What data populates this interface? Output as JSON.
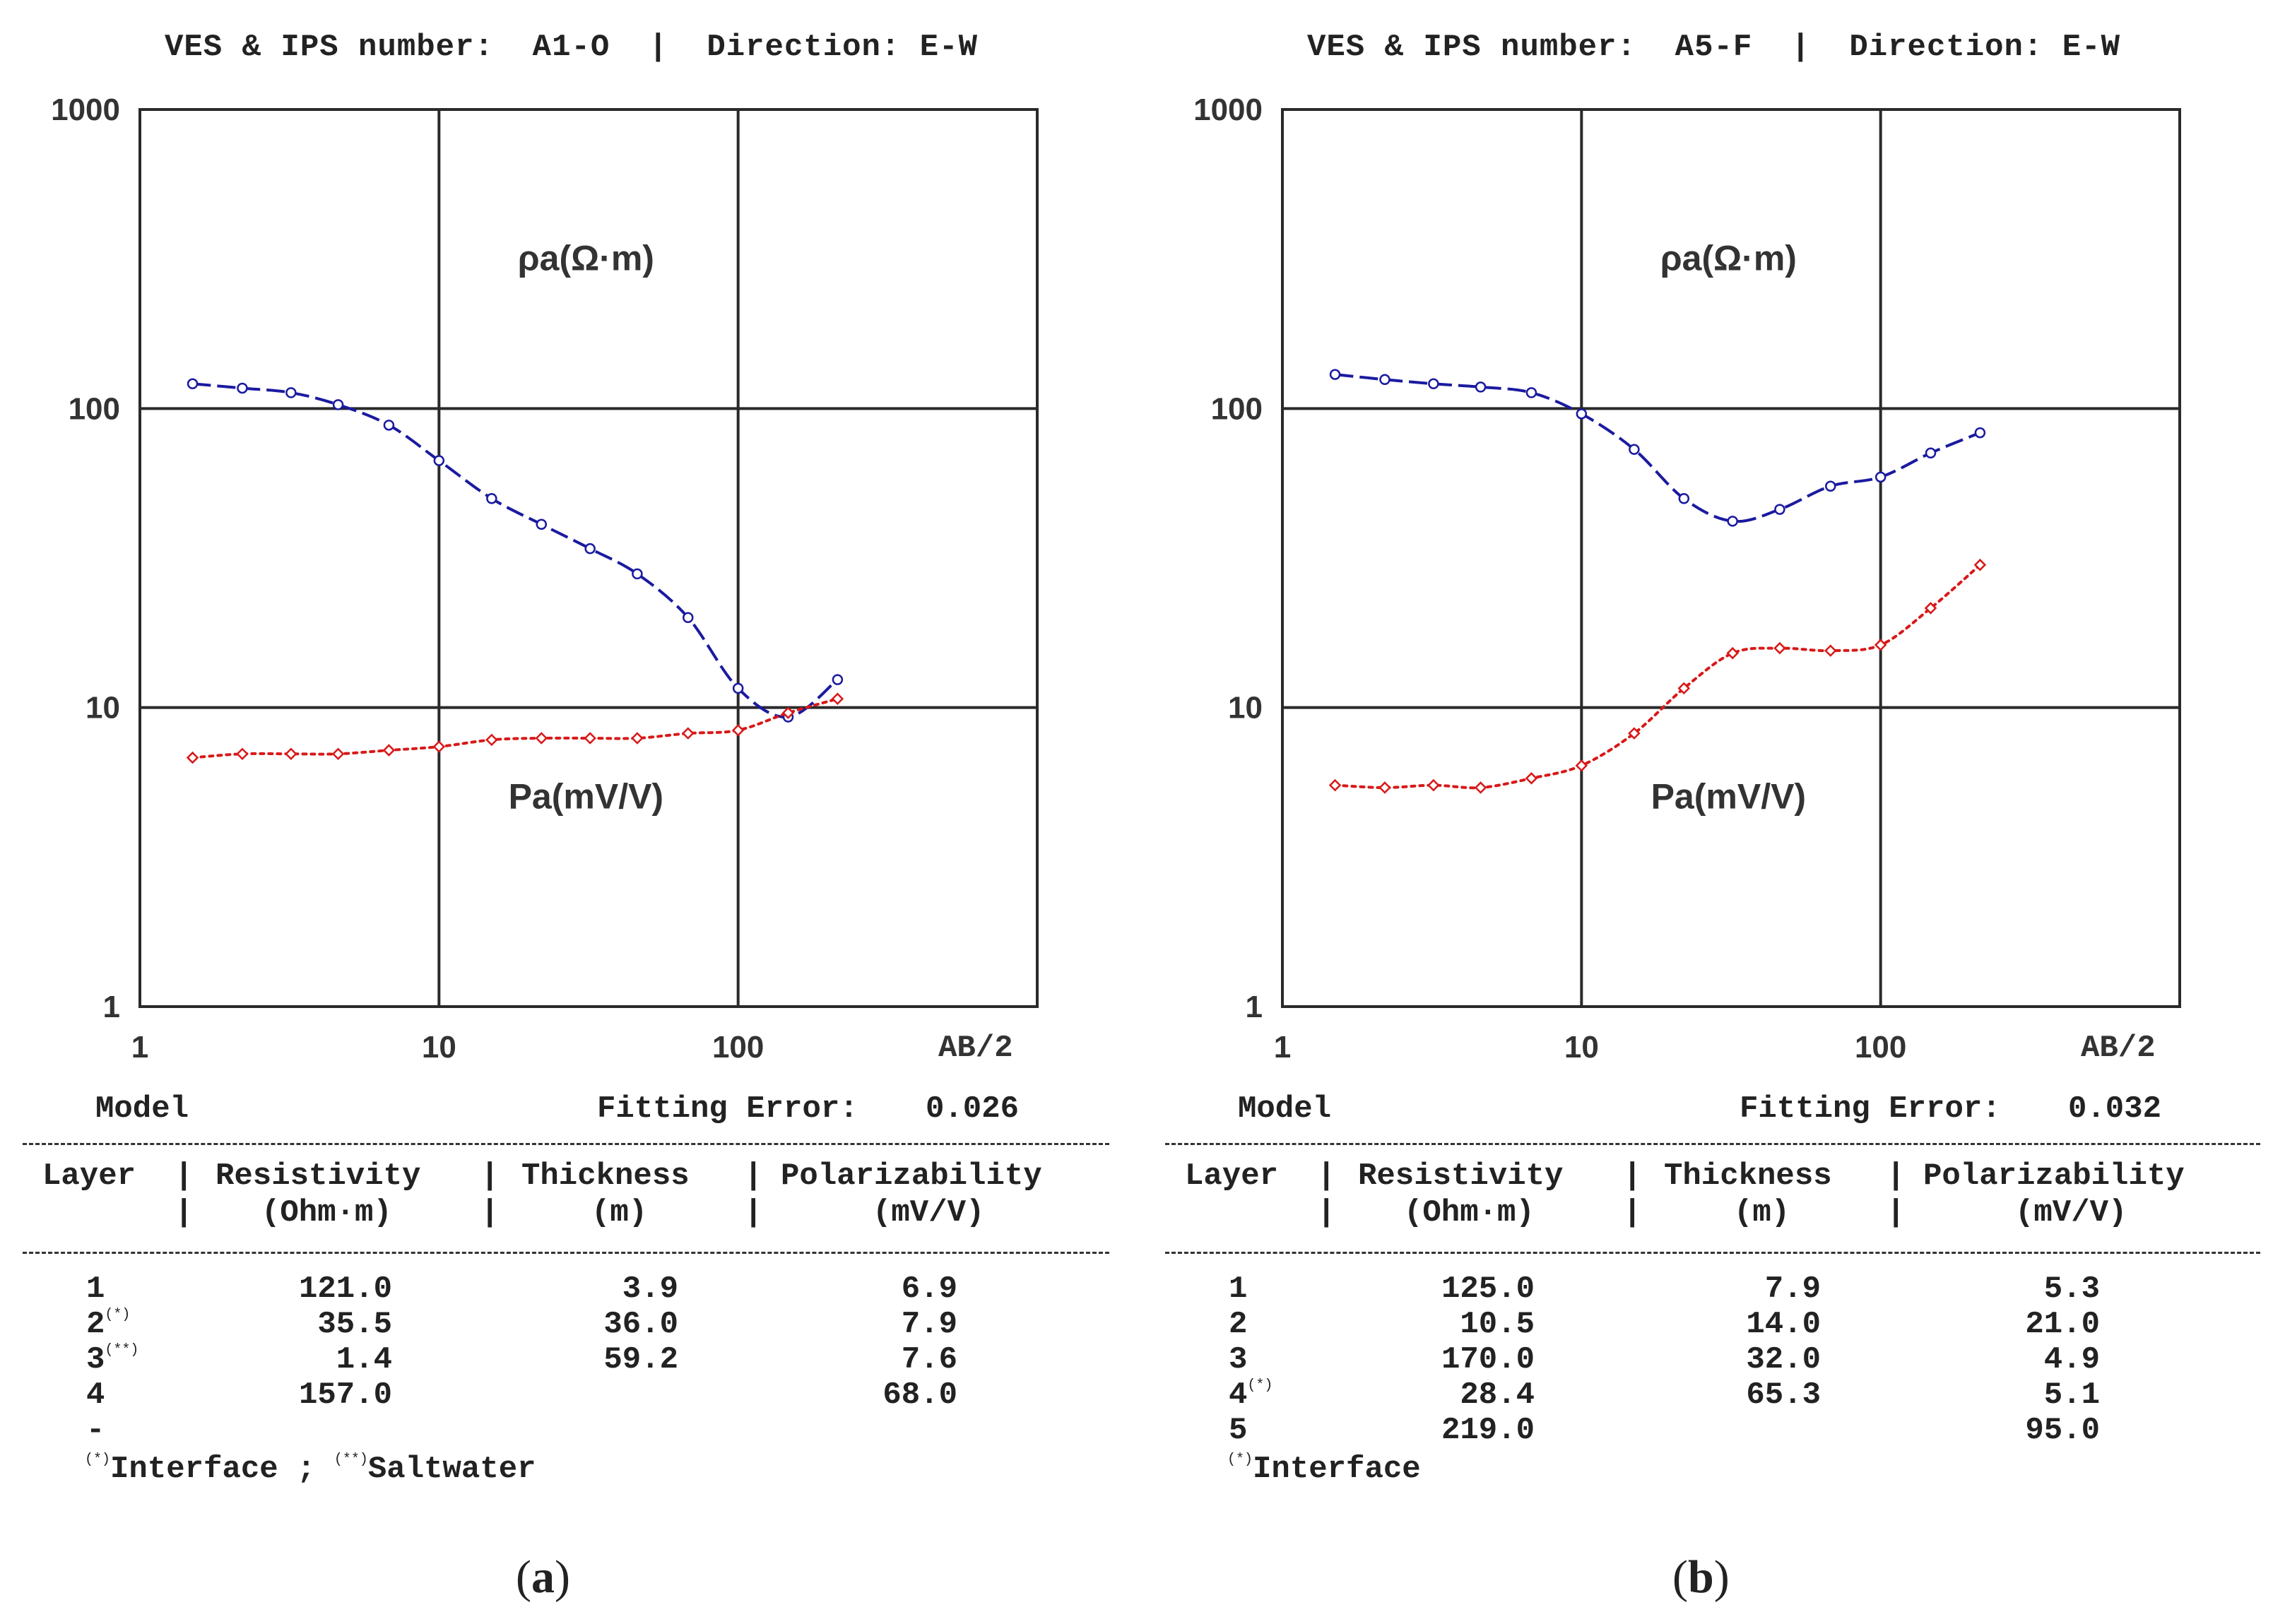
{
  "colors": {
    "resistivity": "#1a1aa0",
    "polarizability": "#d81818",
    "grid": "#2a2a2a"
  },
  "chart_data": [
    {
      "type": "line",
      "header": "VES & IPS number:  A1-O  |  Direction: E-W",
      "xscale": "log",
      "yscale": "log",
      "xlim": [
        1,
        1000
      ],
      "ylim": [
        1,
        1000
      ],
      "x_ticks": [
        "1",
        "10",
        "100"
      ],
      "y_ticks": [
        "1000",
        "100",
        "10",
        "1"
      ],
      "xlabel": "AB/2",
      "curve_labels": {
        "resistivity": "ρa(Ω·m)",
        "polarizability": "Pa(mV/V)"
      },
      "series": [
        {
          "name": "ρa (Ω·m)",
          "style": "dashed",
          "marker": "circle",
          "x": [
            1.5,
            2.2,
            3.2,
            4.6,
            6.8,
            10,
            15,
            22,
            32,
            46,
            68,
            100,
            147,
            215
          ],
          "y": [
            121,
            117,
            113,
            103,
            88,
            67,
            50,
            41,
            34,
            28,
            20,
            11.6,
            9.3,
            12.4
          ]
        },
        {
          "name": "Pa (mV/V)",
          "style": "dotted",
          "marker": "diamond",
          "x": [
            1.5,
            2.2,
            3.2,
            4.6,
            6.8,
            10,
            15,
            22,
            32,
            46,
            68,
            100,
            147,
            215
          ],
          "y": [
            6.8,
            7.0,
            7.0,
            7.0,
            7.2,
            7.4,
            7.8,
            7.9,
            7.9,
            7.9,
            8.2,
            8.4,
            9.6,
            10.7
          ]
        }
      ],
      "model": {
        "title": "Model",
        "fitting_error_label": "Fitting Error:",
        "fitting_error": "0.026",
        "columns": [
          "Layer",
          "Resistivity",
          "Thickness",
          "Polarizability"
        ],
        "units": [
          "",
          "(Ohm·m)",
          "(m)",
          "(mV/V)"
        ],
        "rows": [
          {
            "layer": "1",
            "mark": "",
            "resistivity": "121.0",
            "thickness": "3.9",
            "polarizability": "6.9"
          },
          {
            "layer": "2",
            "mark": "(*)",
            "resistivity": "35.5",
            "thickness": "36.0",
            "polarizability": "7.9"
          },
          {
            "layer": "3",
            "mark": "(**)",
            "resistivity": "1.4",
            "thickness": "59.2",
            "polarizability": "7.6"
          },
          {
            "layer": "4",
            "mark": "",
            "resistivity": "157.0",
            "thickness": "",
            "polarizability": "68.0"
          },
          {
            "layer": "-",
            "mark": "",
            "resistivity": "",
            "thickness": "",
            "polarizability": ""
          }
        ],
        "note_a_mark": "(*)",
        "note_a_text": "Interface ; ",
        "note_b_mark": "(**)",
        "note_b_text": "Saltwater"
      },
      "caption": "a"
    },
    {
      "type": "line",
      "header": "VES & IPS number:  A5-F  |  Direction: E-W",
      "xscale": "log",
      "yscale": "log",
      "xlim": [
        1,
        1000
      ],
      "ylim": [
        1,
        1000
      ],
      "x_ticks": [
        "1",
        "10",
        "100"
      ],
      "y_ticks": [
        "1000",
        "100",
        "10",
        "1"
      ],
      "xlabel": "AB/2",
      "curve_labels": {
        "resistivity": "ρa(Ω·m)",
        "polarizability": "Pa(mV/V)"
      },
      "series": [
        {
          "name": "ρa (Ω·m)",
          "style": "dashed",
          "marker": "circle",
          "x": [
            1.5,
            2.2,
            3.2,
            4.6,
            6.8,
            10,
            15,
            22,
            32,
            46,
            68,
            100,
            147,
            215
          ],
          "y": [
            130,
            125,
            121,
            118,
            113,
            96,
            73,
            50,
            42,
            46,
            55,
            59,
            71,
            83
          ]
        },
        {
          "name": "Pa (mV/V)",
          "style": "dotted",
          "marker": "diamond",
          "x": [
            1.5,
            2.2,
            3.2,
            4.6,
            6.8,
            10,
            15,
            22,
            32,
            46,
            68,
            100,
            147,
            215
          ],
          "y": [
            5.5,
            5.4,
            5.5,
            5.4,
            5.8,
            6.4,
            8.2,
            11.6,
            15.2,
            15.8,
            15.5,
            16.2,
            21.5,
            30
          ]
        }
      ],
      "model": {
        "title": "Model",
        "fitting_error_label": "Fitting Error:",
        "fitting_error": "0.032",
        "columns": [
          "Layer",
          "Resistivity",
          "Thickness",
          "Polarizability"
        ],
        "units": [
          "",
          "(Ohm·m)",
          "(m)",
          "(mV/V)"
        ],
        "rows": [
          {
            "layer": "1",
            "mark": "",
            "resistivity": "125.0",
            "thickness": "7.9",
            "polarizability": "5.3"
          },
          {
            "layer": "2",
            "mark": "",
            "resistivity": "10.5",
            "thickness": "14.0",
            "polarizability": "21.0"
          },
          {
            "layer": "3",
            "mark": "",
            "resistivity": "170.0",
            "thickness": "32.0",
            "polarizability": "4.9"
          },
          {
            "layer": "4",
            "mark": "(*)",
            "resistivity": "28.4",
            "thickness": "65.3",
            "polarizability": "5.1"
          },
          {
            "layer": "5",
            "mark": "",
            "resistivity": "219.0",
            "thickness": "",
            "polarizability": "95.0"
          }
        ],
        "note_a_mark": "(*)",
        "note_a_text": "Interface",
        "note_b_mark": "",
        "note_b_text": ""
      },
      "caption": "b"
    }
  ]
}
